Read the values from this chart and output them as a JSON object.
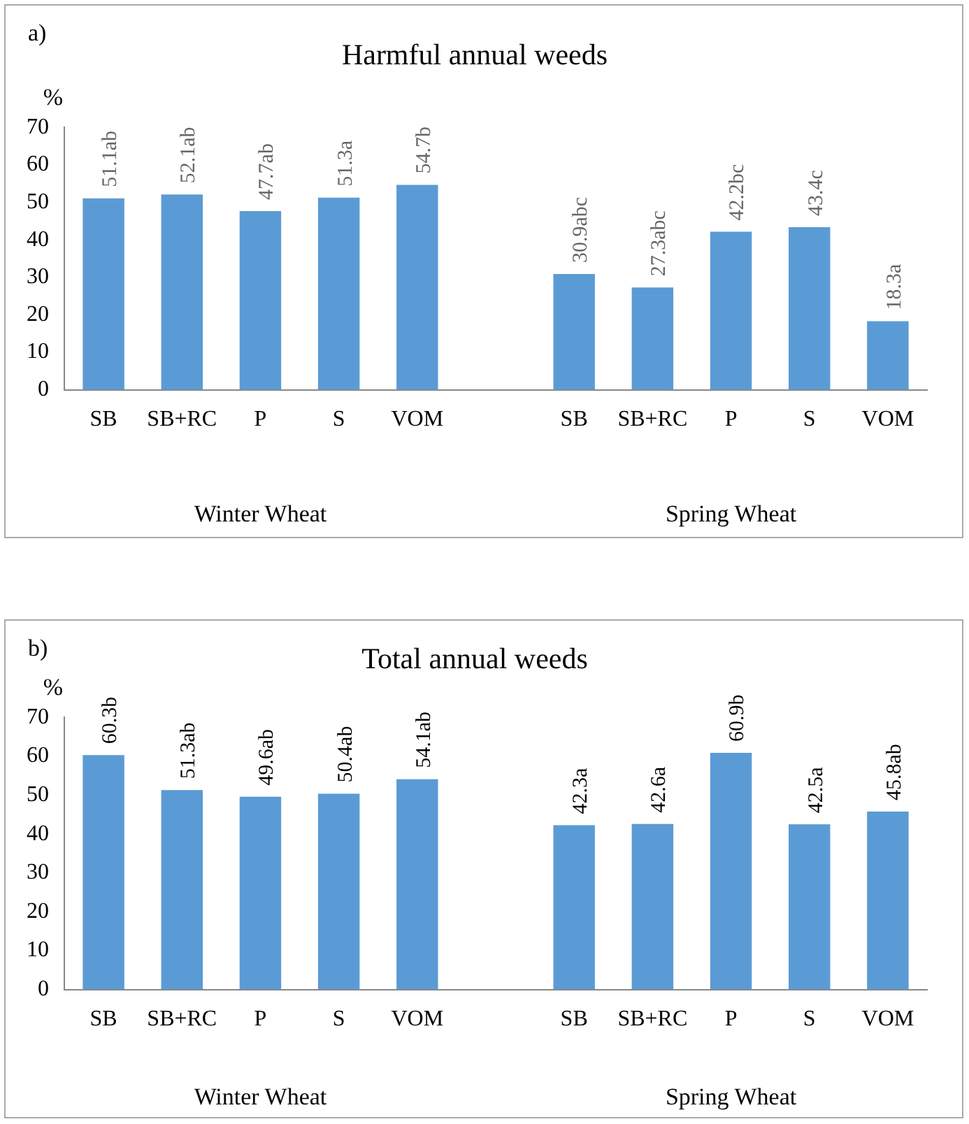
{
  "chart_data": [
    {
      "type": "bar",
      "title": "Harmful annual weeds",
      "ylabel": "%",
      "categories": [
        "SB",
        "SB+RC",
        "P",
        "S",
        "VOM",
        null,
        "SB",
        "SB+RC",
        "P",
        "S",
        "VOM"
      ],
      "values": [
        51.1,
        52.1,
        47.7,
        51.3,
        54.7,
        null,
        30.9,
        27.3,
        42.2,
        43.4,
        18.3
      ],
      "value_labels": [
        "51.1ab",
        "52.1ab",
        "47.7ab",
        "51.3a",
        "54.7b",
        null,
        "30.9abc",
        "27.3abc",
        "42.2bc",
        "43.4c",
        "18.3a"
      ],
      "color": "#5b9bd5",
      "ylim": [
        0,
        70
      ],
      "yticks": [
        0,
        10,
        20,
        30,
        40,
        50,
        60,
        70
      ],
      "grid": false,
      "legend": false,
      "annotations": [
        "a)",
        "Winter Wheat",
        "Spring Wheat"
      ]
    },
    {
      "type": "bar",
      "title": "Total annual weeds",
      "ylabel": "%",
      "categories": [
        "SB",
        "SB+RC",
        "P",
        "S",
        "VOM",
        null,
        "SB",
        "SB+RC",
        "P",
        "S",
        "VOM"
      ],
      "values": [
        60.3,
        51.3,
        49.6,
        50.4,
        54.1,
        null,
        42.3,
        42.6,
        60.9,
        42.5,
        45.8
      ],
      "value_labels": [
        "60.3b",
        "51.3ab",
        "49.6ab",
        "50.4ab",
        "54.1ab",
        null,
        "42.3a",
        "42.6a",
        "60.9b",
        "42.5a",
        "45.8ab"
      ],
      "color": "#5b9bd5",
      "ylim": [
        0,
        70
      ],
      "yticks": [
        0,
        10,
        20,
        30,
        40,
        50,
        60,
        70
      ],
      "grid": false,
      "legend": false,
      "annotations": [
        "b)",
        "Winter Wheat",
        "Spring Wheat"
      ]
    }
  ]
}
